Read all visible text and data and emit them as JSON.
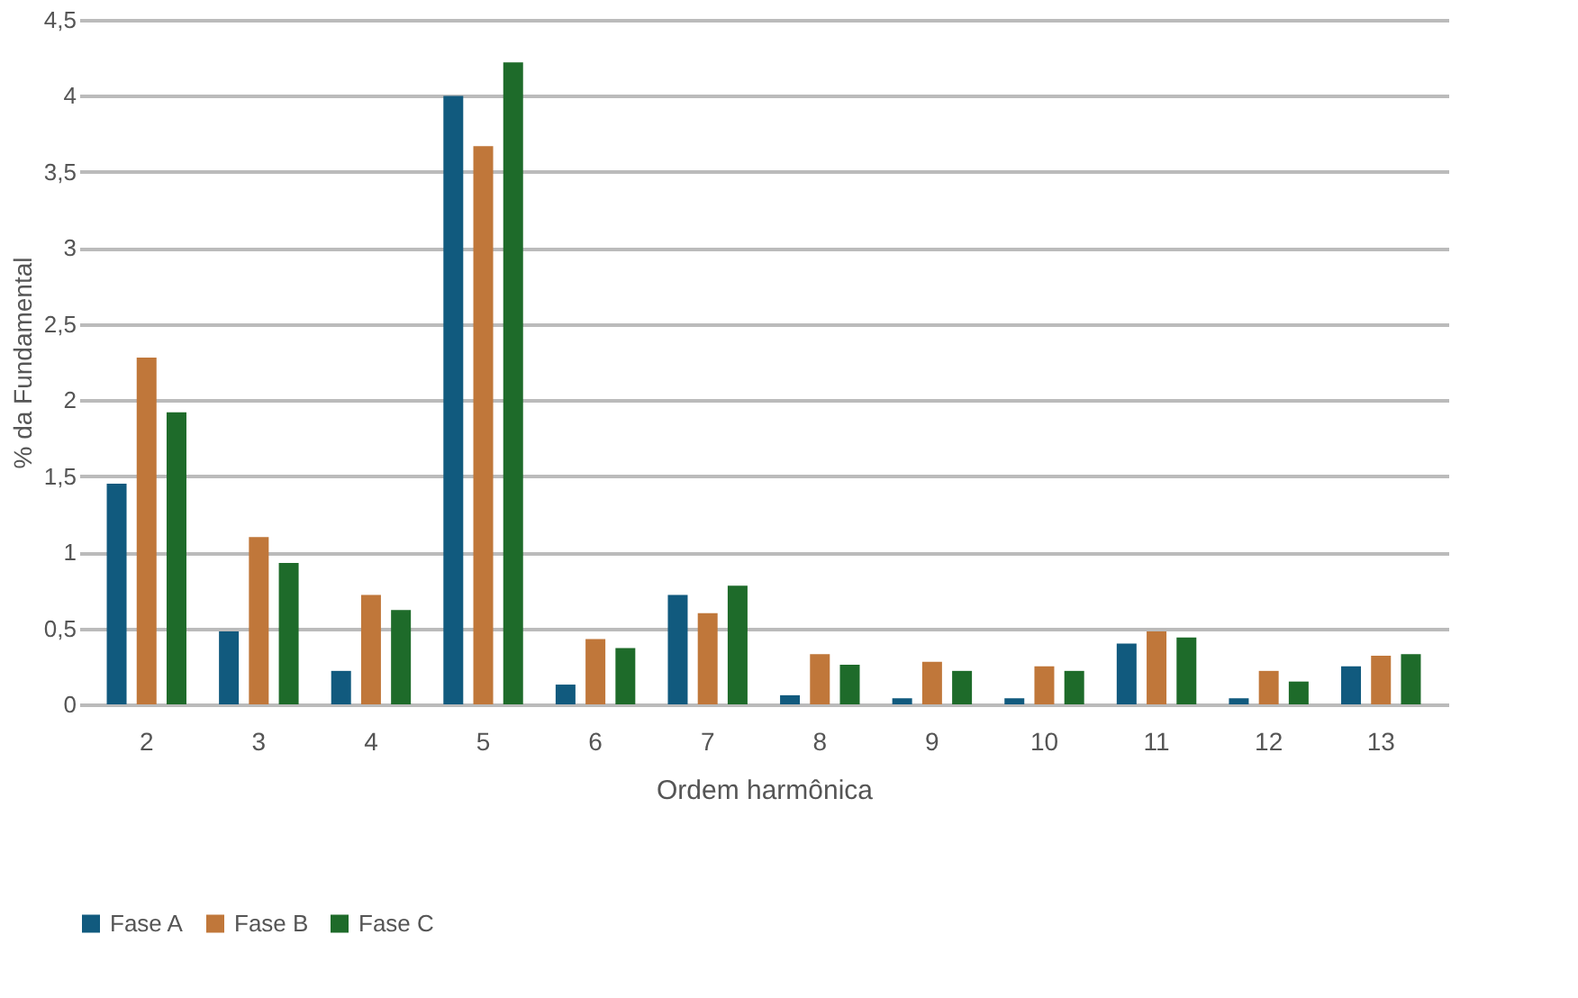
{
  "chart_data": {
    "type": "bar",
    "xlabel": "Ordem harmônica",
    "ylabel": "% da Fundamental",
    "categories": [
      "2",
      "3",
      "4",
      "5",
      "6",
      "7",
      "8",
      "9",
      "10",
      "11",
      "12",
      "13"
    ],
    "series": [
      {
        "name": "Fase A",
        "color": "#115a7e",
        "values": [
          1.45,
          0.48,
          0.22,
          4.0,
          0.13,
          0.72,
          0.06,
          0.04,
          0.04,
          0.4,
          0.04,
          0.25
        ]
      },
      {
        "name": "Fase B",
        "color": "#c0773a",
        "values": [
          2.28,
          1.1,
          0.72,
          3.67,
          0.43,
          0.6,
          0.33,
          0.28,
          0.25,
          0.48,
          0.22,
          0.32
        ]
      },
      {
        "name": "Fase C",
        "color": "#1e6b2a",
        "values": [
          1.92,
          0.93,
          0.62,
          4.22,
          0.37,
          0.78,
          0.26,
          0.22,
          0.22,
          0.44,
          0.15,
          0.33
        ]
      }
    ],
    "ylim": [
      0,
      4.5
    ],
    "yticks": [
      0,
      {
        "value": 0.5,
        "label": "0,5"
      },
      1,
      {
        "value": 1.5,
        "label": "1,5"
      },
      2,
      {
        "value": 2.5,
        "label": "2,5"
      },
      3,
      {
        "value": 3.5,
        "label": "3,5"
      },
      4,
      {
        "value": 4.5,
        "label": "4,5"
      }
    ],
    "grid": "y",
    "legend": "bottom"
  }
}
